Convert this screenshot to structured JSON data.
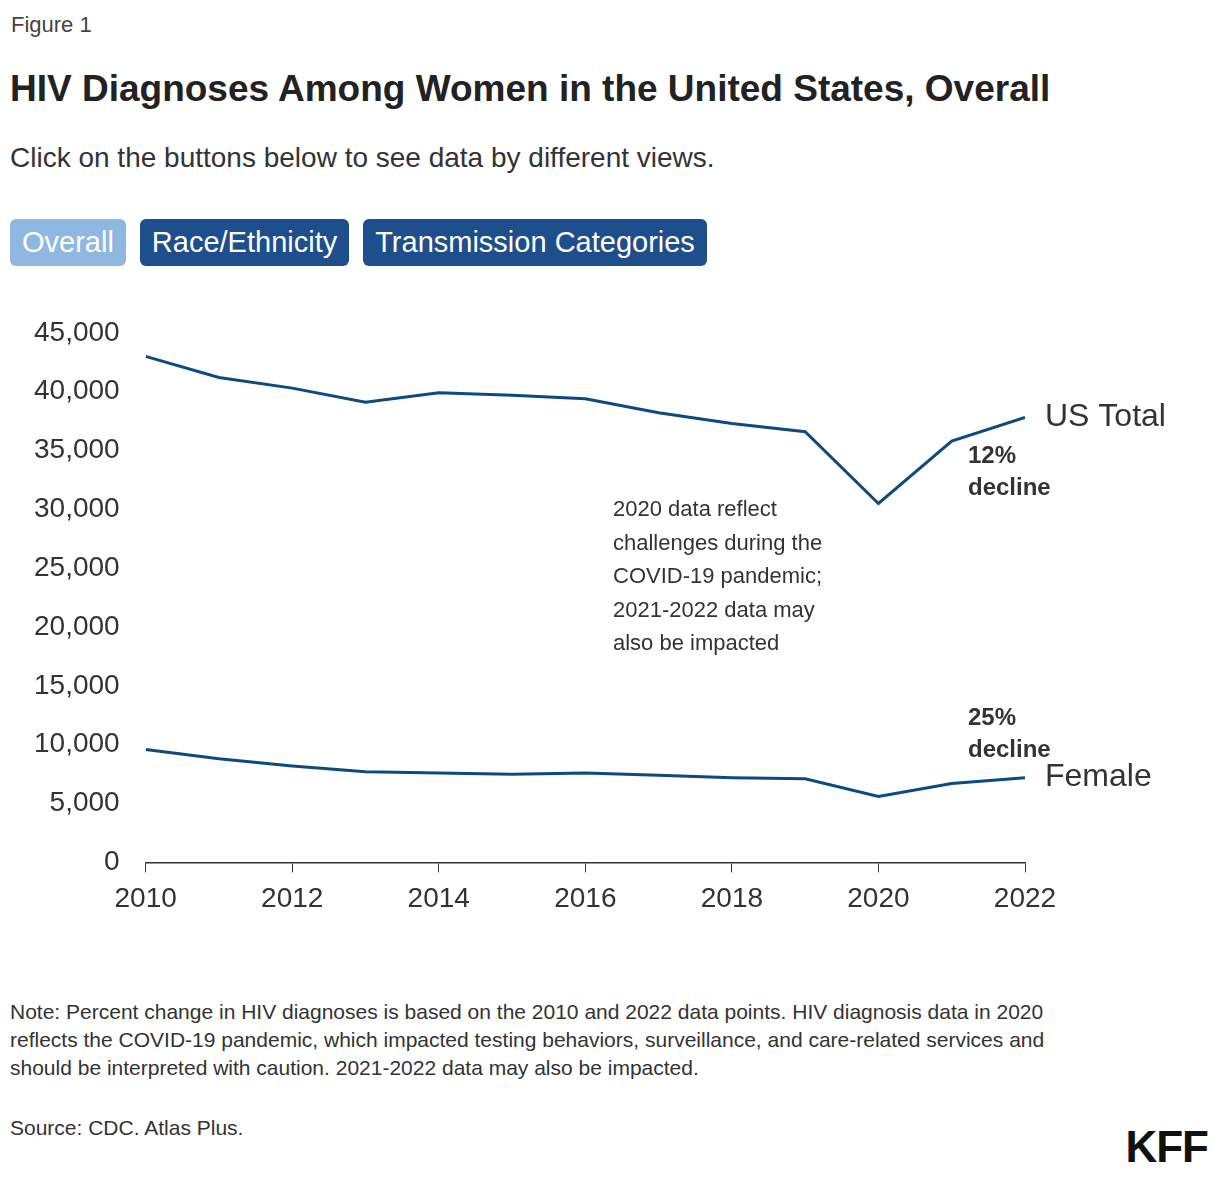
{
  "chart_data": {
    "type": "line",
    "figure_label": "Figure 1",
    "title": "HIV Diagnoses Among Women in the United States, Overall",
    "subtitle": "Click on the buttons below to see data by different views.",
    "buttons": [
      "Overall",
      "Race/Ethnicity",
      "Transmission Categories"
    ],
    "x": [
      2010,
      2011,
      2012,
      2013,
      2014,
      2015,
      2016,
      2017,
      2018,
      2019,
      2020,
      2021,
      2022
    ],
    "series": [
      {
        "name": "US Total",
        "color": "#0d4a80",
        "values": [
          43000,
          41200,
          40300,
          39100,
          39900,
          39700,
          39400,
          38200,
          37300,
          36600,
          30500,
          35800,
          37800
        ]
      },
      {
        "name": "Female",
        "color": "#0d4a80",
        "values": [
          9600,
          8800,
          8200,
          7700,
          7600,
          7500,
          7600,
          7400,
          7200,
          7100,
          5600,
          6700,
          7200
        ]
      }
    ],
    "xlim": [
      2010,
      2022
    ],
    "xticks": [
      2010,
      2012,
      2014,
      2016,
      2018,
      2020,
      2022
    ],
    "ylim": [
      0,
      45000
    ],
    "yticks": [
      0,
      {
        "value": 5000,
        "label": "5,000"
      },
      {
        "value": 10000,
        "label": "10,000"
      },
      {
        "value": 15000,
        "label": "15,000"
      },
      {
        "value": 20000,
        "label": "20,000"
      },
      {
        "value": 25000,
        "label": "25,000"
      },
      {
        "value": 30000,
        "label": "30,000"
      },
      {
        "value": 35000,
        "label": "35,000"
      },
      {
        "value": 40000,
        "label": "40,000"
      },
      {
        "value": 45000,
        "label": "45,000"
      }
    ],
    "grid": false,
    "annotations": [
      "12% decline",
      "25% decline",
      "2020 data reflect challenges during the COVID-19 pandemic; 2021-2022 data may also be impacted"
    ],
    "note": "Note: Percent change in HIV diagnoses is based on the 2010 and 2022 data points. HIV diagnosis data in 2020 reflects the COVID-19 pandemic, which impacted testing behaviors, surveillance, and care-related services and should be interpreted with caution. 2021-2022 data may also be impacted.",
    "source": "Source: CDC. Atlas Plus.",
    "brand": "KFF"
  }
}
